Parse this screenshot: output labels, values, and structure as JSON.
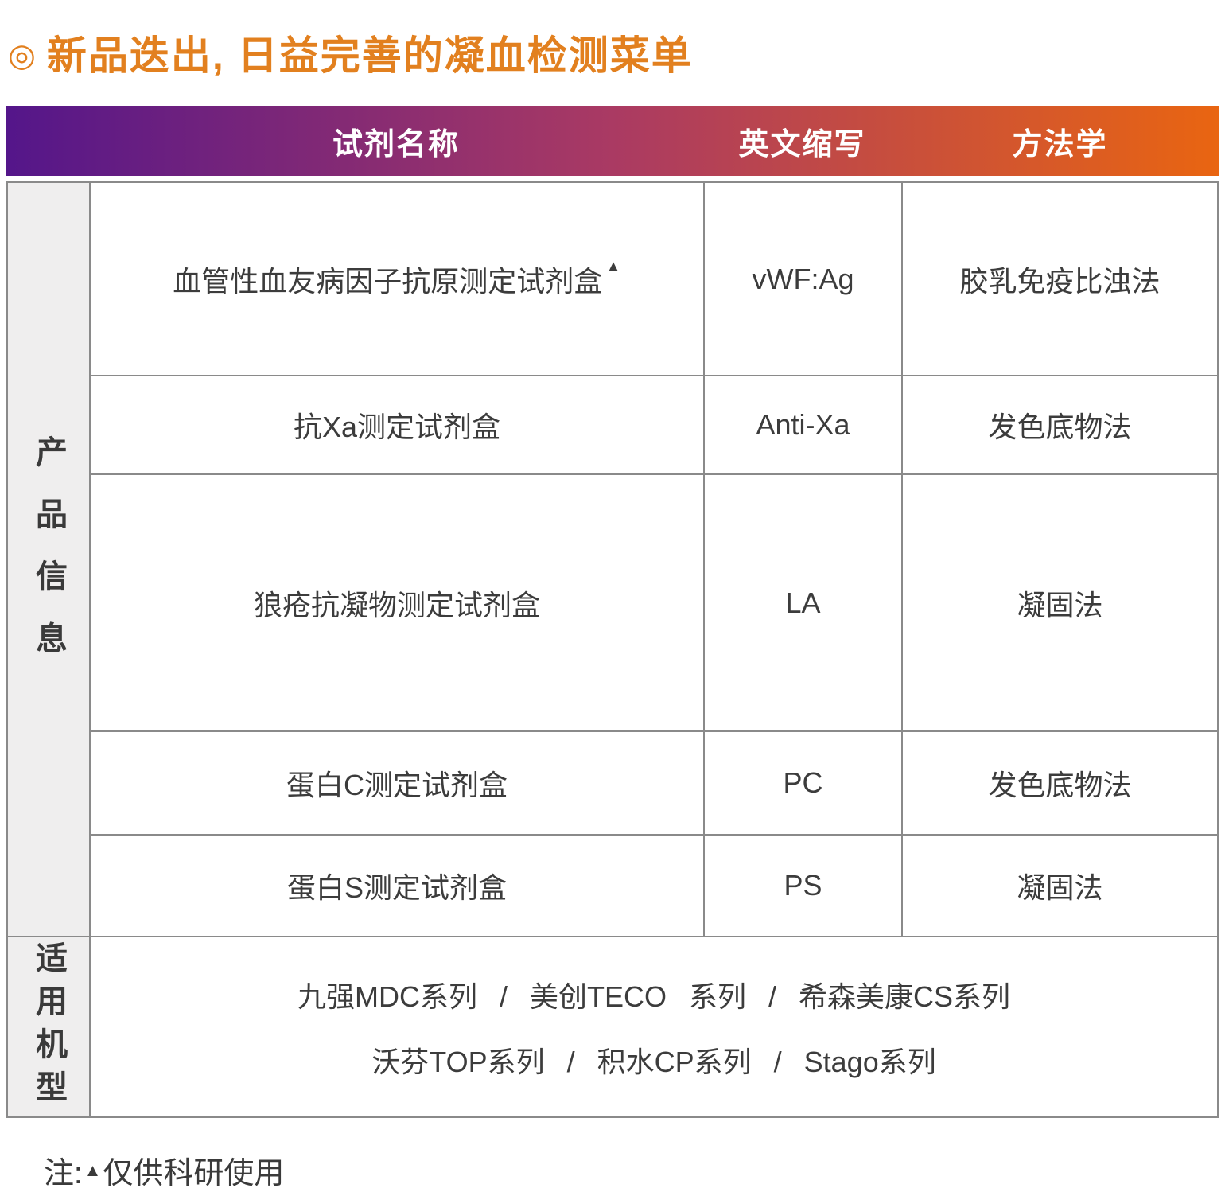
{
  "page": {
    "title_bullet": "◎",
    "title": "新品迭出, 日益完善的凝血检测菜单",
    "note_prefix": "注:",
    "note_marker": "▲",
    "note_text": "仅供科研使用"
  },
  "colors": {
    "title_orange": "#e2801f",
    "gradient_left_purple": "#54168a",
    "gradient_mid_crimson": "#aa3a63",
    "gradient_right_orange": "#e96511",
    "border_gray": "#8a8a8a",
    "sidebar_bg": "#efeeee",
    "body_text": "#3c3c3c"
  },
  "table": {
    "headers": [
      "试剂名称",
      "英文缩写",
      "方法学"
    ],
    "sidebar": {
      "product_info": "产品信息",
      "applicable_models": "适用机型"
    },
    "rows": [
      {
        "name": "血管性血友病因子抗原测定试剂盒",
        "marker": "▲",
        "abbr": "vWF:Ag",
        "method": "胶乳免疫比浊法"
      },
      {
        "name": "抗Xa测定试剂盒",
        "abbr": "Anti-Xa",
        "method": "发色底物法"
      },
      {
        "name": "狼疮抗凝物测定试剂盒",
        "abbr": "LA",
        "method": "凝固法"
      },
      {
        "name": "蛋白C测定试剂盒",
        "abbr": "PC",
        "method": "发色底物法"
      },
      {
        "name": "蛋白S测定试剂盒",
        "abbr": "PS",
        "method": "凝固法"
      }
    ],
    "models_line1": "九强MDC系列 / 美创TECO 系列 / 希森美康CS系列",
    "models_line2": "沃芬TOP系列 / 积水CP系列 / Stago系列"
  }
}
